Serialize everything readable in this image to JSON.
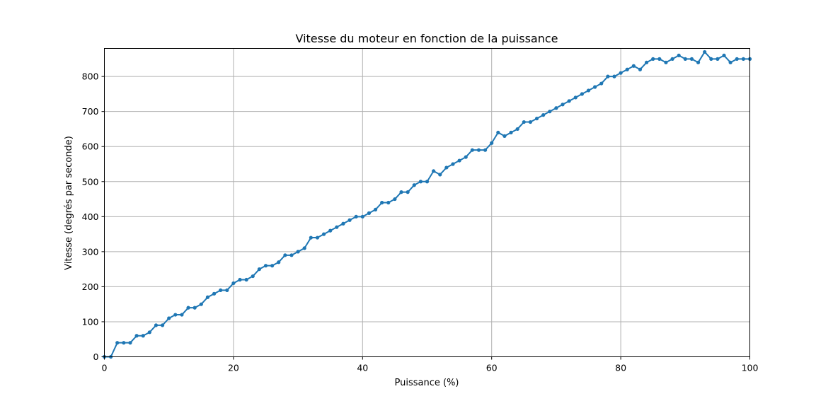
{
  "chart_data": {
    "type": "line",
    "title": "Vitesse du moteur en fonction de la puissance",
    "xlabel": "Puissance (%)",
    "ylabel": "Vitesse (degrés par seconde)",
    "xlim": [
      0,
      100
    ],
    "ylim": [
      0,
      880
    ],
    "xticks": [
      0,
      20,
      40,
      60,
      80,
      100
    ],
    "yticks": [
      0,
      100,
      200,
      300,
      400,
      500,
      600,
      700,
      800
    ],
    "grid": true,
    "series": [
      {
        "color": "#1f77b4",
        "marker": "circle",
        "x": [
          0,
          1,
          2,
          3,
          4,
          5,
          6,
          7,
          8,
          9,
          10,
          11,
          12,
          13,
          14,
          15,
          16,
          17,
          18,
          19,
          20,
          21,
          22,
          23,
          24,
          25,
          26,
          27,
          28,
          29,
          30,
          31,
          32,
          33,
          34,
          35,
          36,
          37,
          38,
          39,
          40,
          41,
          42,
          43,
          44,
          45,
          46,
          47,
          48,
          49,
          50,
          51,
          52,
          53,
          54,
          55,
          56,
          57,
          58,
          59,
          60,
          61,
          62,
          63,
          64,
          65,
          66,
          67,
          68,
          69,
          70,
          71,
          72,
          73,
          74,
          75,
          76,
          77,
          78,
          79,
          80,
          81,
          82,
          83,
          84,
          85,
          86,
          87,
          88,
          89,
          90,
          91,
          92,
          93,
          94,
          95,
          96,
          97,
          98,
          99,
          100
        ],
        "y": [
          0,
          0,
          40,
          40,
          40,
          60,
          60,
          70,
          90,
          90,
          110,
          120,
          120,
          140,
          140,
          150,
          170,
          180,
          190,
          190,
          210,
          220,
          220,
          230,
          250,
          260,
          260,
          270,
          290,
          290,
          300,
          310,
          340,
          340,
          350,
          360,
          370,
          380,
          390,
          400,
          400,
          410,
          420,
          440,
          440,
          450,
          470,
          470,
          490,
          500,
          500,
          530,
          520,
          540,
          550,
          560,
          570,
          590,
          590,
          590,
          610,
          640,
          630,
          640,
          650,
          670,
          670,
          680,
          690,
          700,
          710,
          720,
          730,
          740,
          750,
          760,
          770,
          780,
          800,
          800,
          810,
          820,
          830,
          820,
          840,
          850,
          850,
          840,
          850,
          860,
          850,
          850,
          840,
          870,
          850,
          850,
          860,
          840,
          850,
          850,
          850
        ]
      }
    ]
  }
}
